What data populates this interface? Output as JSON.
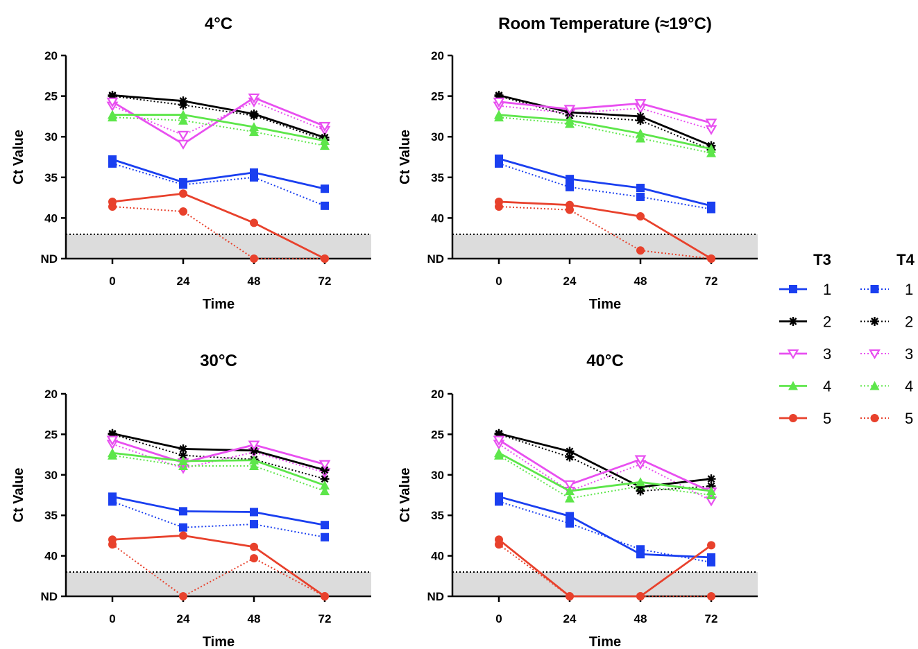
{
  "chart_data": [
    {
      "type": "line",
      "title": "4°C",
      "xlabel": "Time",
      "ylabel": "Ct Value",
      "x": [
        0,
        24,
        48,
        72
      ],
      "ylim": [
        20,
        45
      ],
      "y_inverted": true,
      "yticks": [
        20,
        25,
        30,
        35,
        40
      ],
      "nd_label": "ND",
      "nd_value": 45,
      "detection_limit": 42,
      "grid": false,
      "series": [
        {
          "group": "T3",
          "marker": "1",
          "values": [
            32.8,
            35.6,
            34.4,
            36.4
          ]
        },
        {
          "group": "T3",
          "marker": "2",
          "values": [
            24.9,
            25.6,
            27.2,
            30.1
          ]
        },
        {
          "group": "T3",
          "marker": "3",
          "values": [
            25.7,
            30.9,
            25.2,
            28.7
          ]
        },
        {
          "group": "T3",
          "marker": "4",
          "values": [
            27.3,
            27.3,
            28.8,
            30.5
          ]
        },
        {
          "group": "T3",
          "marker": "5",
          "values": [
            38.0,
            37.0,
            40.6,
            45
          ]
        },
        {
          "group": "T4",
          "marker": "1",
          "values": [
            33.3,
            35.9,
            35.0,
            38.5
          ]
        },
        {
          "group": "T4",
          "marker": "2",
          "values": [
            25.0,
            26.1,
            27.4,
            30.4
          ]
        },
        {
          "group": "T4",
          "marker": "3",
          "values": [
            26.2,
            29.8,
            25.7,
            29.2
          ]
        },
        {
          "group": "T4",
          "marker": "4",
          "values": [
            27.6,
            28.0,
            29.4,
            31.1
          ]
        },
        {
          "group": "T4",
          "marker": "5",
          "values": [
            38.6,
            39.2,
            45,
            45
          ]
        }
      ]
    },
    {
      "type": "line",
      "title": "Room Temperature (≈19°C)",
      "xlabel": "Time",
      "ylabel": "Ct Value",
      "x": [
        0,
        24,
        48,
        72
      ],
      "ylim": [
        20,
        45
      ],
      "y_inverted": true,
      "yticks": [
        20,
        25,
        30,
        35,
        40
      ],
      "nd_label": "ND",
      "nd_value": 45,
      "detection_limit": 42,
      "grid": false,
      "series": [
        {
          "group": "T3",
          "marker": "1",
          "values": [
            32.7,
            35.2,
            36.3,
            38.5
          ]
        },
        {
          "group": "T3",
          "marker": "2",
          "values": [
            24.9,
            27.0,
            27.5,
            31.1
          ]
        },
        {
          "group": "T3",
          "marker": "3",
          "values": [
            25.7,
            26.6,
            25.9,
            28.3
          ]
        },
        {
          "group": "T3",
          "marker": "4",
          "values": [
            27.3,
            28.0,
            29.6,
            31.5
          ]
        },
        {
          "group": "T3",
          "marker": "5",
          "values": [
            38.0,
            38.4,
            39.8,
            45
          ]
        },
        {
          "group": "T4",
          "marker": "1",
          "values": [
            33.3,
            36.2,
            37.4,
            38.9
          ]
        },
        {
          "group": "T4",
          "marker": "2",
          "values": [
            25.0,
            27.4,
            28.0,
            31.6
          ]
        },
        {
          "group": "T4",
          "marker": "3",
          "values": [
            26.2,
            27.1,
            26.5,
            29.1
          ]
        },
        {
          "group": "T4",
          "marker": "4",
          "values": [
            27.6,
            28.4,
            30.2,
            32.0
          ]
        },
        {
          "group": "T4",
          "marker": "5",
          "values": [
            38.6,
            39.0,
            44.0,
            45
          ]
        }
      ]
    },
    {
      "type": "line",
      "title": "30°C",
      "xlabel": "Time",
      "ylabel": "Ct Value",
      "x": [
        0,
        24,
        48,
        72
      ],
      "ylim": [
        20,
        45
      ],
      "y_inverted": true,
      "yticks": [
        20,
        25,
        30,
        35,
        40
      ],
      "nd_label": "ND",
      "nd_value": 45,
      "detection_limit": 42,
      "grid": false,
      "series": [
        {
          "group": "T3",
          "marker": "1",
          "values": [
            32.7,
            34.5,
            34.6,
            36.2
          ]
        },
        {
          "group": "T3",
          "marker": "2",
          "values": [
            24.9,
            26.8,
            27.0,
            29.4
          ]
        },
        {
          "group": "T3",
          "marker": "3",
          "values": [
            25.7,
            28.5,
            26.3,
            28.7
          ]
        },
        {
          "group": "T3",
          "marker": "4",
          "values": [
            27.3,
            28.3,
            28.2,
            31.3
          ]
        },
        {
          "group": "T3",
          "marker": "5",
          "values": [
            38.0,
            37.5,
            38.9,
            45
          ]
        },
        {
          "group": "T4",
          "marker": "1",
          "values": [
            33.3,
            36.5,
            36.1,
            37.7
          ]
        },
        {
          "group": "T4",
          "marker": "2",
          "values": [
            25.0,
            27.6,
            28.1,
            30.5
          ]
        },
        {
          "group": "T4",
          "marker": "3",
          "values": [
            26.2,
            29.2,
            27.2,
            29.7
          ]
        },
        {
          "group": "T4",
          "marker": "4",
          "values": [
            27.6,
            28.9,
            28.9,
            32.0
          ]
        },
        {
          "group": "T4",
          "marker": "5",
          "values": [
            38.6,
            45,
            40.3,
            45
          ]
        }
      ]
    },
    {
      "type": "line",
      "title": "40°C",
      "xlabel": "Time",
      "ylabel": "Ct Value",
      "x": [
        0,
        24,
        48,
        72
      ],
      "ylim": [
        20,
        45
      ],
      "y_inverted": true,
      "yticks": [
        20,
        25,
        30,
        35,
        40
      ],
      "nd_label": "ND",
      "nd_value": 45,
      "detection_limit": 42,
      "grid": false,
      "series": [
        {
          "group": "T3",
          "marker": "1",
          "values": [
            32.7,
            35.1,
            39.8,
            40.2
          ]
        },
        {
          "group": "T3",
          "marker": "2",
          "values": [
            24.9,
            27.1,
            31.5,
            30.5
          ]
        },
        {
          "group": "T3",
          "marker": "3",
          "values": [
            25.7,
            31.2,
            28.1,
            32.1
          ]
        },
        {
          "group": "T3",
          "marker": "4",
          "values": [
            27.3,
            32.0,
            30.9,
            32.0
          ]
        },
        {
          "group": "T3",
          "marker": "5",
          "values": [
            38.0,
            45,
            45,
            38.7
          ]
        },
        {
          "group": "T4",
          "marker": "1",
          "values": [
            33.3,
            36.0,
            39.2,
            40.8
          ]
        },
        {
          "group": "T4",
          "marker": "2",
          "values": [
            25.0,
            27.8,
            32.0,
            31.4
          ]
        },
        {
          "group": "T4",
          "marker": "3",
          "values": [
            26.2,
            32.0,
            28.7,
            33.2
          ]
        },
        {
          "group": "T4",
          "marker": "4",
          "values": [
            27.6,
            32.9,
            31.4,
            32.5
          ]
        },
        {
          "group": "T4",
          "marker": "5",
          "values": [
            38.6,
            45,
            45,
            45
          ]
        }
      ]
    }
  ],
  "legend": {
    "placement": "right",
    "groups": [
      {
        "title": "T3",
        "line": "solid"
      },
      {
        "title": "T4",
        "line": "dotted"
      }
    ],
    "entries": [
      {
        "label": "1",
        "color": "#1a3ff0",
        "shape": "square-icon"
      },
      {
        "label": "2",
        "color": "#000000",
        "shape": "asterisk-icon"
      },
      {
        "label": "3",
        "color": "#e84ff0",
        "shape": "open-triangle-down-icon"
      },
      {
        "label": "4",
        "color": "#5de64a",
        "shape": "triangle-up-icon"
      },
      {
        "label": "5",
        "color": "#e8412c",
        "shape": "circle-icon"
      }
    ]
  },
  "colors": {
    "nd_band": "#dcdcdc",
    "axis": "#000000"
  }
}
